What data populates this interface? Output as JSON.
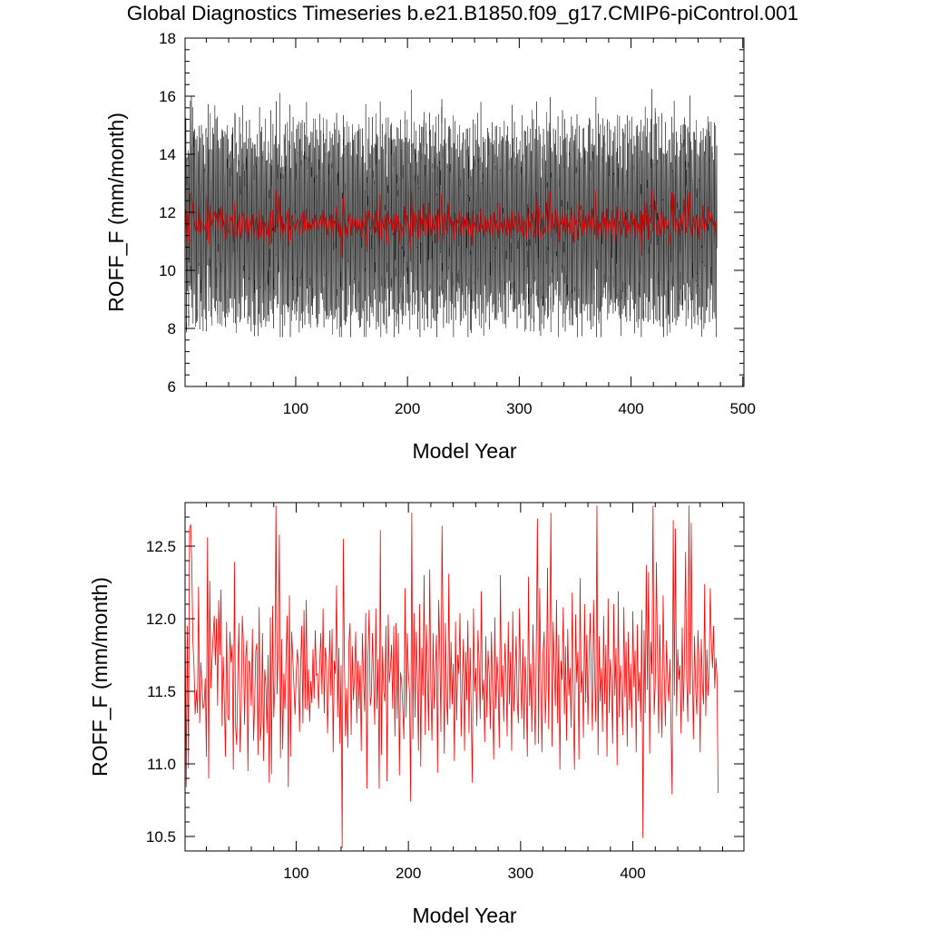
{
  "chart_data": [
    {
      "type": "line",
      "title": "Global Diagnostics Timeseries b.e21.B1850.f09_g17.CMIP6-piControl.001",
      "xlabel": "Model Year",
      "ylabel": "ROFF_F (mm/month)",
      "xlim": [
        1,
        501
      ],
      "ylim": [
        6,
        18
      ],
      "x_ticks": [
        100,
        200,
        300,
        400,
        500
      ],
      "x_tick_labels": [
        "100",
        "200",
        "300",
        "400",
        "500"
      ],
      "y_ticks": [
        6,
        8,
        10,
        12,
        14,
        16,
        18
      ],
      "y_tick_labels": [
        "6",
        "8",
        "10",
        "12",
        "14",
        "16",
        "18"
      ],
      "grid": false,
      "series": [
        {
          "kind": "monthly",
          "color": "#000000",
          "points_per_year": 12,
          "annual_cycle_amplitude": 2.8,
          "annual_cycle_phase_month": 5,
          "approx_min": 7.7,
          "approx_max": 16.8
        },
        {
          "kind": "annual_mean",
          "color": "#cc0000"
        }
      ]
    },
    {
      "type": "line",
      "xlabel": "Model Year",
      "ylabel": "ROFF_F (mm/month)",
      "xlim": [
        1,
        499
      ],
      "ylim": [
        10.4,
        12.8
      ],
      "x_ticks": [
        100,
        200,
        300,
        400
      ],
      "x_tick_labels": [
        "100",
        "200",
        "300",
        "400"
      ],
      "y_ticks": [
        10.5,
        11.0,
        11.5,
        12.0,
        12.5
      ],
      "y_tick_labels": [
        "10.5",
        "11.0",
        "11.5",
        "12.0",
        "12.5"
      ],
      "grid": false,
      "series": [
        {
          "kind": "annual_mean",
          "color": "#ff0000",
          "x_start": 1,
          "x_step": 1,
          "values": [
            12.08,
            10.84,
            11.95,
            10.97,
            12.62,
            12.65,
            12.38,
            11.84,
            11.66,
            11.34,
            11.51,
            11.35,
            12.22,
            11.28,
            11.7,
            11.55,
            11.38,
            11.41,
            11.59,
            11.05,
            12.56,
            10.9,
            12.26,
            11.52,
            11.72,
            11.88,
            12.02,
            11.68,
            12.0,
            11.4,
            12.13,
            11.75,
            12.2,
            11.26,
            11.74,
            11.43,
            11.05,
            11.98,
            11.33,
            11.3,
            11.91,
            11.7,
            11.82,
            10.96,
            12.39,
            11.26,
            11.13,
            11.6,
            11.97,
            11.08,
            11.37,
            12.02,
            11.83,
            11.27,
            11.73,
            11.85,
            10.95,
            11.71,
            11.68,
            11.4,
            11.93,
            11.16,
            11.41,
            11.78,
            11.83,
            11.06,
            12.08,
            11.16,
            11.28,
            11.9,
            11.02,
            11.65,
            11.54,
            11.21,
            11.75,
            10.87,
            12.01,
            10.93,
            12.09,
            11.32,
            11.54,
            12.78,
            11.48,
            11.8,
            12.58,
            11.04,
            11.86,
            11.1,
            11.62,
            11.38,
            11.74,
            12.02,
            10.84,
            12.16,
            11.05,
            11.91,
            11.73,
            11.54,
            11.34,
            11.6,
            11.79,
            11.67,
            11.22,
            11.68,
            11.95,
            11.28,
            12.06,
            11.38,
            12.13,
            11.37,
            11.65,
            11.29,
            11.57,
            11.42,
            11.79,
            11.45,
            11.92,
            11.61,
            11.62,
            11.38,
            11.7,
            11.9,
            11.48,
            12.07,
            11.35,
            11.8,
            11.72,
            11.21,
            11.56,
            11.92,
            11.47,
            11.93,
            11.08,
            11.71,
            11.62,
            12.23,
            11.32,
            11.8,
            11.14,
            11.68,
            10.42,
            12.55,
            11.71,
            11.19,
            11.52,
            11.11,
            11.83,
            11.97,
            11.2,
            11.81,
            11.44,
            11.6,
            11.91,
            11.28,
            11.71,
            11.38,
            11.68,
            11.09,
            11.9,
            11.61,
            11.36,
            12.04,
            10.83,
            11.74,
            12.06,
            11.4,
            11.47,
            11.9,
            11.59,
            11.27,
            12.07,
            11.38,
            11.72,
            10.83,
            12.61,
            11.06,
            11.81,
            11.5,
            11.43,
            11.95,
            10.88,
            12.03,
            11.56,
            11.66,
            11.82,
            11.38,
            11.95,
            11.19,
            11.97,
            11.31,
            11.9,
            10.92,
            11.63,
            11.57,
            11.39,
            11.17,
            12.21,
            11.32,
            11.9,
            11.63,
            11.49,
            10.74,
            12.73,
            11.17,
            12.04,
            11.32,
            11.91,
            11.59,
            11.09,
            12.1,
            10.98,
            11.8,
            11.47,
            12.3,
            11.2,
            11.96,
            11.6,
            11.23,
            12.34,
            11.53,
            11.16,
            11.9,
            11.38,
            11.64,
            11.89,
            10.94,
            12.13,
            11.78,
            11.22,
            12.64,
            11.83,
            11.07,
            11.97,
            11.45,
            11.27,
            12.31,
            11.38,
            11.84,
            11.41,
            11.69,
            11.02,
            11.98,
            11.3,
            11.75,
            11.62,
            12.04,
            11.19,
            11.54,
            11.86,
            11.09,
            11.77,
            11.44,
            11.99,
            11.21,
            11.8,
            11.34,
            10.87,
            12.07,
            11.5,
            11.66,
            11.26,
            11.92,
            11.71,
            11.31,
            12.19,
            11.44,
            11.58,
            11.15,
            11.88,
            11.32,
            11.78,
            11.62,
            11.24,
            11.91,
            11.48,
            11.03,
            12.01,
            11.38,
            11.74,
            11.55,
            11.11,
            12.3,
            11.46,
            11.68,
            11.29,
            11.83,
            11.62,
            11.19,
            11.98,
            11.41,
            11.77,
            11.09,
            12.05,
            11.36,
            11.59,
            11.88,
            11.44,
            11.28,
            12.07,
            11.62,
            11.31,
            11.86,
            11.17,
            11.74,
            11.51,
            11.05,
            12.29,
            11.4,
            11.69,
            11.22,
            11.96,
            11.55,
            11.13,
            11.82,
            12.69,
            11.14,
            12.21,
            11.59,
            11.08,
            11.76,
            11.91,
            11.28,
            11.55,
            12.35,
            11.24,
            11.85,
            12.73,
            11.12,
            11.98,
            11.65,
            11.4,
            12.13,
            11.28,
            11.89,
            10.96,
            11.71,
            11.58,
            12.08,
            11.34,
            11.81,
            11.16,
            11.93,
            11.47,
            11.66,
            11.25,
            12.18,
            11.39,
            10.96,
            12.03,
            11.56,
            11.77,
            11.03,
            12.28,
            11.49,
            11.64,
            11.18,
            12.1,
            11.42,
            11.89,
            11.27,
            11.74,
            12.04,
            11.58,
            11.23,
            12.13,
            11.61,
            11.29,
            12.78,
            11.06,
            11.88,
            11.43,
            11.66,
            11.22,
            12.02,
            11.41,
            11.82,
            11.05,
            12.14,
            11.35,
            11.72,
            11.59,
            11.14,
            12.1,
            11.47,
            11.8,
            10.99,
            12.19,
            11.32,
            11.68,
            11.54,
            11.2,
            12.08,
            11.46,
            11.84,
            11.12,
            11.91,
            11.37,
            11.69,
            11.25,
            12.05,
            11.53,
            11.78,
            11.08,
            11.96,
            11.43,
            11.63,
            11.29,
            12.06,
            10.49,
            11.92,
            11.35,
            12.37,
            11.51,
            12.32,
            11.07,
            11.84,
            11.62,
            12.78,
            11.34,
            11.55,
            12.39,
            11.74,
            11.21,
            11.96,
            11.49,
            11.18,
            12.16,
            11.63,
            11.26,
            11.85,
            11.59,
            11.43,
            11.72,
            11.27,
            10.79,
            12.68,
            11.47,
            12.62,
            11.33,
            11.79,
            11.58,
            11.68,
            11.21,
            11.94,
            11.36,
            11.71,
            12.46,
            11.58,
            11.29,
            12.78,
            11.48,
            12.66,
            11.68,
            11.17,
            11.88,
            11.52,
            11.34,
            11.92,
            11.69,
            11.08,
            11.86,
            11.55,
            11.41,
            12.24,
            11.33,
            11.79,
            11.47,
            11.62,
            12.21,
            11.84,
            11.66,
            11.95,
            11.52,
            11.73,
            11.61,
            10.8
          ]
        }
      ]
    }
  ]
}
